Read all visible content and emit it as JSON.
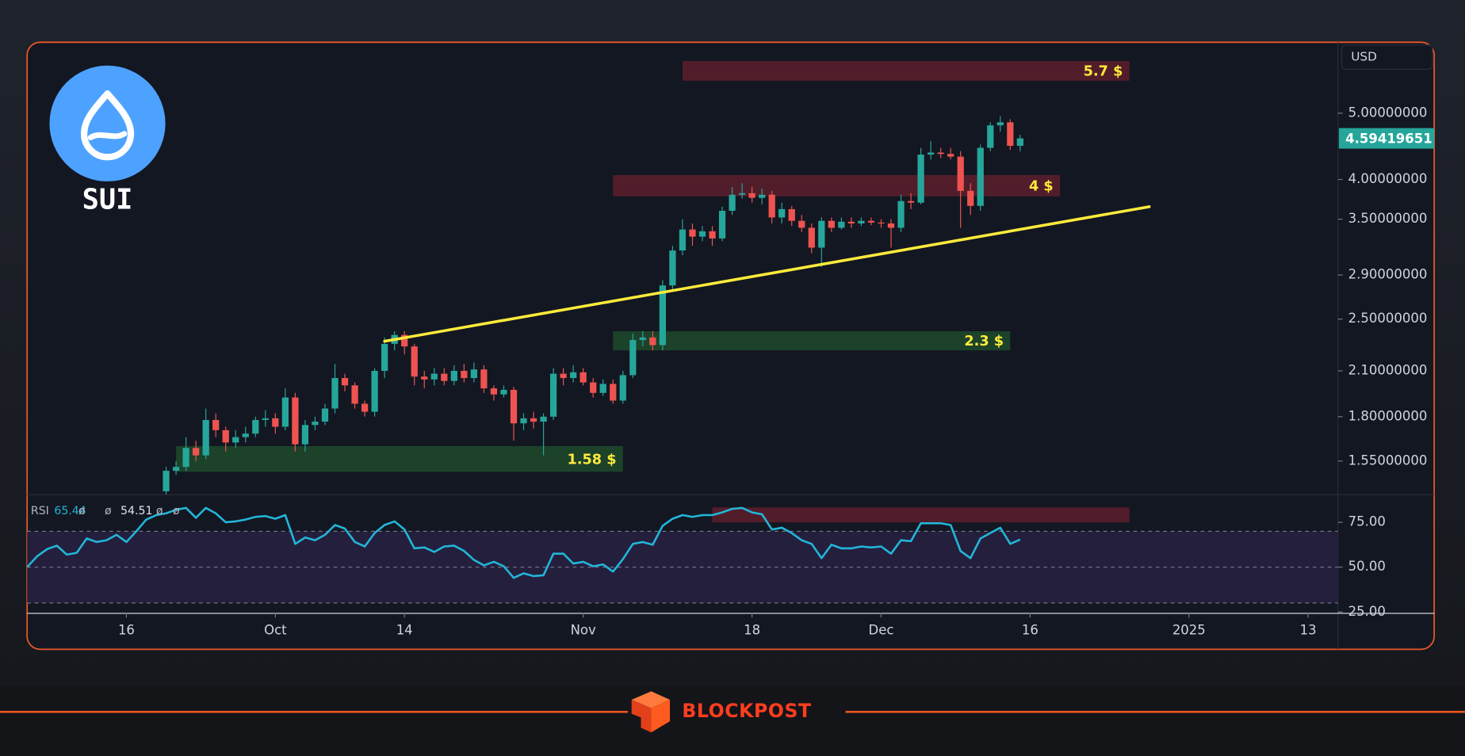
{
  "logo": {
    "name": "SUI"
  },
  "currency": "USD",
  "brand": "BLOCKPOST",
  "chart_data": [
    {
      "type": "candlestick",
      "x": [
        "2024-09-06",
        "2024-09-07",
        "2024-09-08",
        "2024-09-09",
        "2024-09-10",
        "2024-09-11",
        "2024-09-12",
        "2024-09-13",
        "2024-09-14",
        "2024-09-15",
        "2024-09-16",
        "2024-09-17",
        "2024-09-18",
        "2024-09-19",
        "2024-09-20",
        "2024-09-21",
        "2024-09-22",
        "2024-09-23",
        "2024-09-24",
        "2024-09-25",
        "2024-09-26",
        "2024-09-27",
        "2024-09-28",
        "2024-09-29",
        "2024-09-30",
        "2024-10-01",
        "2024-10-02",
        "2024-10-03",
        "2024-10-04",
        "2024-10-05",
        "2024-10-06",
        "2024-10-07",
        "2024-10-08",
        "2024-10-09",
        "2024-10-10",
        "2024-10-11",
        "2024-10-12",
        "2024-10-13",
        "2024-10-14",
        "2024-10-15",
        "2024-10-16",
        "2024-10-17",
        "2024-10-18",
        "2024-10-19",
        "2024-10-20",
        "2024-10-21",
        "2024-10-22",
        "2024-10-23",
        "2024-10-24",
        "2024-10-25",
        "2024-10-26",
        "2024-10-27",
        "2024-10-28",
        "2024-10-29",
        "2024-10-30",
        "2024-10-31",
        "2024-11-01",
        "2024-11-02",
        "2024-11-03",
        "2024-11-04",
        "2024-11-05",
        "2024-11-06",
        "2024-11-07",
        "2024-11-08",
        "2024-11-09",
        "2024-11-10",
        "2024-11-11",
        "2024-11-12",
        "2024-11-13",
        "2024-11-14",
        "2024-11-15",
        "2024-11-16",
        "2024-11-17",
        "2024-11-18",
        "2024-11-19",
        "2024-11-20",
        "2024-11-21",
        "2024-11-22",
        "2024-11-23",
        "2024-11-24",
        "2024-11-25",
        "2024-11-26",
        "2024-11-27",
        "2024-11-28",
        "2024-11-29",
        "2024-11-30",
        "2024-12-01",
        "2024-12-02",
        "2024-12-03",
        "2024-12-04",
        "2024-12-05",
        "2024-12-06",
        "2024-12-07",
        "2024-12-08",
        "2024-12-09",
        "2024-12-10",
        "2024-12-11",
        "2024-12-12",
        "2024-12-13",
        "2024-12-14",
        "2024-12-15"
      ],
      "open": [
        null,
        null,
        null,
        null,
        null,
        null,
        null,
        null,
        null,
        null,
        null,
        null,
        null,
        null,
        1.4,
        1.5,
        1.52,
        1.62,
        1.58,
        1.78,
        1.72,
        1.65,
        1.68,
        1.7,
        1.78,
        1.79,
        1.74,
        1.92,
        1.64,
        1.75,
        1.77,
        1.85,
        2.05,
        2.0,
        1.88,
        1.83,
        2.1,
        2.3,
        2.37,
        2.28,
        2.06,
        2.04,
        2.08,
        2.03,
        2.1,
        2.05,
        2.11,
        1.98,
        1.94,
        1.97,
        1.76,
        1.79,
        1.77,
        1.8,
        2.08,
        2.05,
        2.09,
        2.02,
        1.95,
        2.01,
        1.9,
        2.07,
        2.33,
        2.35,
        2.29,
        2.8,
        3.15,
        3.38,
        3.3,
        3.36,
        3.28,
        3.6,
        3.8,
        3.82,
        3.76,
        3.8,
        3.52,
        3.62,
        3.48,
        3.4,
        3.18,
        3.48,
        3.4,
        3.47,
        3.45,
        3.48,
        3.46,
        3.45,
        3.4,
        3.72,
        3.7,
        4.35,
        4.38,
        4.36,
        4.32,
        3.85,
        3.66,
        4.45,
        4.8,
        4.85,
        4.48
      ],
      "high": [
        null,
        null,
        null,
        null,
        null,
        null,
        null,
        null,
        null,
        null,
        null,
        null,
        null,
        null,
        1.52,
        1.55,
        1.68,
        1.66,
        1.85,
        1.82,
        1.74,
        1.72,
        1.74,
        1.8,
        1.84,
        1.82,
        1.98,
        1.95,
        1.78,
        1.8,
        1.88,
        2.15,
        2.08,
        2.02,
        1.9,
        2.12,
        2.35,
        2.4,
        2.4,
        2.3,
        2.1,
        2.12,
        2.12,
        2.14,
        2.15,
        2.16,
        2.14,
        2.0,
        2.0,
        1.99,
        1.82,
        1.83,
        1.82,
        2.12,
        2.12,
        2.14,
        2.12,
        2.05,
        2.04,
        2.04,
        2.1,
        2.38,
        2.4,
        2.4,
        2.85,
        3.2,
        3.5,
        3.45,
        3.42,
        3.42,
        3.65,
        3.9,
        3.95,
        3.9,
        3.88,
        3.85,
        3.7,
        3.66,
        3.55,
        3.45,
        3.52,
        3.52,
        3.52,
        3.52,
        3.52,
        3.52,
        3.5,
        3.5,
        3.8,
        3.82,
        4.45,
        4.55,
        4.45,
        4.45,
        4.4,
        3.95,
        4.5,
        4.85,
        4.95,
        4.9,
        4.65
      ],
      "low": [
        null,
        null,
        null,
        null,
        null,
        null,
        null,
        null,
        null,
        null,
        null,
        null,
        null,
        null,
        1.36,
        1.48,
        1.5,
        1.55,
        1.56,
        1.68,
        1.6,
        1.62,
        1.65,
        1.68,
        1.74,
        1.7,
        1.72,
        1.6,
        1.6,
        1.72,
        1.75,
        1.82,
        1.96,
        1.85,
        1.8,
        1.8,
        2.05,
        2.25,
        2.22,
        2.0,
        1.98,
        2.0,
        2.0,
        2.0,
        2.02,
        2.02,
        1.95,
        1.9,
        1.92,
        1.66,
        1.72,
        1.73,
        1.58,
        1.78,
        2.0,
        2.02,
        2.0,
        1.92,
        1.93,
        1.88,
        1.88,
        2.05,
        2.28,
        2.25,
        2.25,
        2.75,
        3.1,
        3.2,
        3.25,
        3.2,
        3.25,
        3.55,
        3.75,
        3.7,
        3.68,
        3.45,
        3.45,
        3.42,
        3.35,
        3.12,
        2.98,
        3.35,
        3.38,
        3.4,
        3.42,
        3.43,
        3.4,
        3.18,
        3.35,
        3.62,
        3.68,
        4.28,
        4.3,
        4.28,
        3.4,
        3.55,
        3.6,
        4.4,
        4.7,
        4.42,
        4.4
      ],
      "close": [
        null,
        null,
        null,
        null,
        null,
        null,
        null,
        null,
        null,
        null,
        null,
        null,
        null,
        null,
        1.5,
        1.52,
        1.62,
        1.58,
        1.78,
        1.72,
        1.65,
        1.68,
        1.7,
        1.78,
        1.79,
        1.74,
        1.92,
        1.64,
        1.75,
        1.77,
        1.85,
        2.05,
        2.0,
        1.88,
        1.83,
        2.1,
        2.3,
        2.37,
        2.28,
        2.06,
        2.04,
        2.08,
        2.03,
        2.1,
        2.05,
        2.11,
        1.98,
        1.94,
        1.97,
        1.76,
        1.79,
        1.77,
        1.8,
        2.08,
        2.05,
        2.09,
        2.02,
        1.95,
        2.01,
        1.9,
        2.07,
        2.33,
        2.35,
        2.29,
        2.8,
        3.15,
        3.38,
        3.3,
        3.36,
        3.28,
        3.6,
        3.8,
        3.82,
        3.76,
        3.8,
        3.52,
        3.62,
        3.48,
        3.4,
        3.18,
        3.48,
        3.4,
        3.47,
        3.45,
        3.48,
        3.46,
        3.45,
        3.4,
        3.72,
        3.7,
        4.35,
        4.38,
        4.36,
        4.32,
        3.85,
        3.66,
        4.45,
        4.8,
        4.85,
        4.48,
        4.59419651
      ],
      "up_color": "#26a69a",
      "down_color": "#ef5350",
      "log_scale": true,
      "ylim": [
        1.386,
        6.35
      ],
      "yticks": [
        {
          "value": 1.55,
          "label": "1.55000000"
        },
        {
          "value": 1.8,
          "label": "1.80000000"
        },
        {
          "value": 2.1,
          "label": "2.10000000"
        },
        {
          "value": 2.5,
          "label": "2.50000000"
        },
        {
          "value": 2.9,
          "label": "2.90000000"
        },
        {
          "value": 3.5,
          "label": "3.50000000"
        },
        {
          "value": 4,
          "label": "4.00000000"
        },
        {
          "value": 5,
          "label": "5.00000000"
        }
      ],
      "xlim": [
        "2024-09-06",
        "2025-01-16"
      ],
      "xticks": [
        {
          "value": "2024-09-16",
          "label": "16"
        },
        {
          "value": "2024-10-01",
          "label": "Oct"
        },
        {
          "value": "2024-10-14",
          "label": "14"
        },
        {
          "value": "2024-11-01",
          "label": "Nov"
        },
        {
          "value": "2024-11-18",
          "label": "18"
        },
        {
          "value": "2024-12-01",
          "label": "Dec"
        },
        {
          "value": "2024-12-16",
          "label": "16"
        },
        {
          "value": "2025-01-01",
          "label": "2025"
        },
        {
          "value": "2025-01-13",
          "label": "13"
        }
      ],
      "price_tag_color": "#26a69a",
      "zones": [
        {
          "label": "5.7 $",
          "x": [
            "2024-11-11",
            "2024-12-26"
          ],
          "y": [
            5.58,
            5.96
          ],
          "color": "#5e1f2b"
        },
        {
          "label": "4 $",
          "x": [
            "2024-11-04",
            "2024-12-19"
          ],
          "y": [
            3.78,
            4.06
          ],
          "color": "#5e1f2b"
        },
        {
          "label": "2.3 $",
          "x": [
            "2024-11-04",
            "2024-12-14"
          ],
          "y": [
            2.25,
            2.4
          ],
          "color": "#1e4a2c"
        },
        {
          "label": "1.58 $",
          "x": [
            "2024-09-21",
            "2024-11-05"
          ],
          "y": [
            1.495,
            1.63
          ],
          "color": "#1e4a2c"
        }
      ],
      "zone_label_color": "#ffeb3b",
      "trendline": {
        "x": [
          "2024-10-12",
          "2024-12-28"
        ],
        "y": [
          2.32,
          3.65
        ],
        "color": "#ffeb3b"
      }
    },
    {
      "type": "line",
      "title": "RSI",
      "x": [
        "2024-09-06",
        "2024-09-07",
        "2024-09-08",
        "2024-09-09",
        "2024-09-10",
        "2024-09-11",
        "2024-09-12",
        "2024-09-13",
        "2024-09-14",
        "2024-09-15",
        "2024-09-16",
        "2024-09-17",
        "2024-09-18",
        "2024-09-19",
        "2024-09-20",
        "2024-09-21",
        "2024-09-22",
        "2024-09-23",
        "2024-09-24",
        "2024-09-25",
        "2024-09-26",
        "2024-09-27",
        "2024-09-28",
        "2024-09-29",
        "2024-09-30",
        "2024-10-01",
        "2024-10-02",
        "2024-10-03",
        "2024-10-04",
        "2024-10-05",
        "2024-10-06",
        "2024-10-07",
        "2024-10-08",
        "2024-10-09",
        "2024-10-10",
        "2024-10-11",
        "2024-10-12",
        "2024-10-13",
        "2024-10-14",
        "2024-10-15",
        "2024-10-16",
        "2024-10-17",
        "2024-10-18",
        "2024-10-19",
        "2024-10-20",
        "2024-10-21",
        "2024-10-22",
        "2024-10-23",
        "2024-10-24",
        "2024-10-25",
        "2024-10-26",
        "2024-10-27",
        "2024-10-28",
        "2024-10-29",
        "2024-10-30",
        "2024-10-31",
        "2024-11-01",
        "2024-11-02",
        "2024-11-03",
        "2024-11-04",
        "2024-11-05",
        "2024-11-06",
        "2024-11-07",
        "2024-11-08",
        "2024-11-09",
        "2024-11-10",
        "2024-11-11",
        "2024-11-12",
        "2024-11-13",
        "2024-11-14",
        "2024-11-15",
        "2024-11-16",
        "2024-11-17",
        "2024-11-18",
        "2024-11-19",
        "2024-11-20",
        "2024-11-21",
        "2024-11-22",
        "2024-11-23",
        "2024-11-24",
        "2024-11-25",
        "2024-11-26",
        "2024-11-27",
        "2024-11-28",
        "2024-11-29",
        "2024-11-30",
        "2024-12-01",
        "2024-12-02",
        "2024-12-03",
        "2024-12-04",
        "2024-12-05",
        "2024-12-06",
        "2024-12-07",
        "2024-12-08",
        "2024-12-09",
        "2024-12-10",
        "2024-12-11",
        "2024-12-12",
        "2024-12-13",
        "2024-12-14",
        "2024-12-15"
      ],
      "series": [
        {
          "name": "RSI",
          "color": "#22b5d8",
          "values": [
            50,
            56,
            60,
            62,
            57,
            58,
            66,
            64,
            65,
            68,
            64,
            70,
            76.5,
            79,
            80,
            82,
            83,
            77.5,
            83,
            80,
            75,
            75.5,
            76.5,
            78,
            78.5,
            77,
            79,
            63,
            66.5,
            65,
            68,
            73.5,
            71.5,
            64,
            61.5,
            69,
            73.5,
            75.5,
            71,
            60.5,
            61,
            58.5,
            61.5,
            62,
            59,
            54,
            51,
            53,
            50.5,
            44,
            46.5,
            45,
            45.5,
            57.5,
            57.5,
            52,
            53,
            50.5,
            51.5,
            47.5,
            54.5,
            63,
            64,
            62.5,
            73,
            77,
            79,
            78,
            79,
            79,
            80.5,
            82.5,
            83,
            80.5,
            79.5,
            71,
            72,
            69,
            65,
            63,
            55,
            62.5,
            60.5,
            60.5,
            61.5,
            61,
            61.5,
            57.5,
            65,
            64.5,
            74.5,
            74.5,
            74.5,
            73.5,
            59,
            55,
            66,
            69,
            72,
            63,
            65.44
          ]
        }
      ],
      "legend_values": [
        {
          "text": 65.44,
          "color": "#22b5d8"
        },
        {
          "text": "ø",
          "color": "#b2b5be"
        },
        {
          "text": "ø",
          "color": "#b2b5be"
        },
        {
          "text": 54.51,
          "color": "#e0e3eb"
        },
        {
          "text": "ø",
          "color": "#b2b5be"
        },
        {
          "text": "ø",
          "color": "#b2b5be"
        }
      ],
      "ylim": [
        24.5,
        90.1
      ],
      "yticks": [
        {
          "value": 25,
          "label": "25.00"
        },
        {
          "value": 50,
          "label": "50.00"
        },
        {
          "value": 75,
          "label": "75.00"
        }
      ],
      "band": [
        30,
        70
      ],
      "midline": 50,
      "band_color": "#241f3d",
      "zones": [
        {
          "x": [
            "2024-11-14",
            "2024-12-26"
          ],
          "y": [
            75,
            83.3
          ],
          "color": "#5e1f2b"
        }
      ]
    }
  ]
}
